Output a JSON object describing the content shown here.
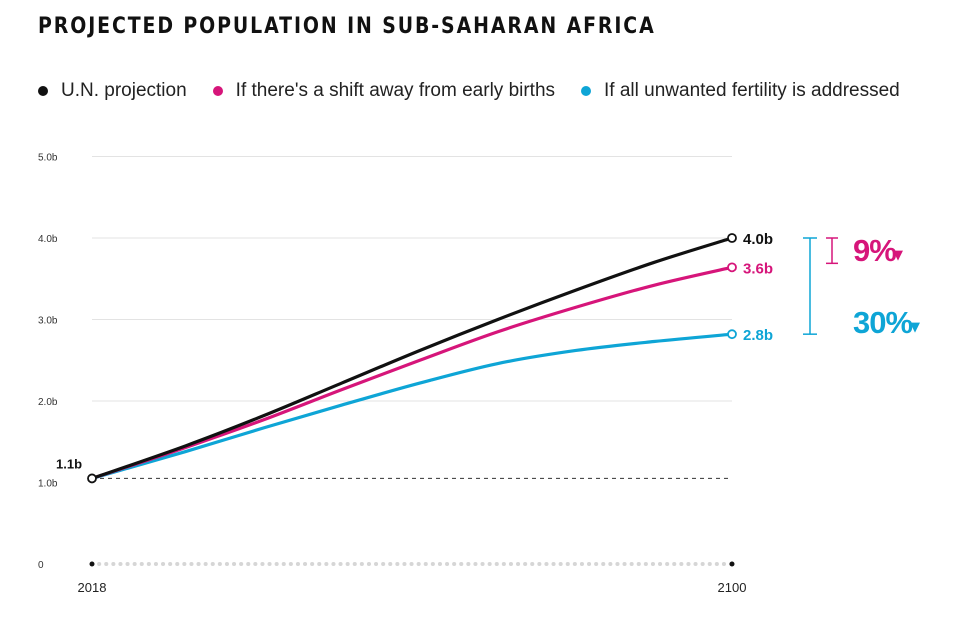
{
  "title": "PROJECTED POPULATION IN SUB-SAHARAN AFRICA",
  "colors": {
    "un": "#111111",
    "early": "#d6157a",
    "unwanted": "#0ea5d6",
    "grid": "#e3e3e3"
  },
  "chart_data": {
    "type": "line",
    "title": "PROJECTED POPULATION IN SUB-SAHARAN AFRICA",
    "xlabel": "",
    "ylabel": "",
    "x": [
      "2018",
      "2100"
    ],
    "ylim": [
      0,
      5
    ],
    "yticks": [
      0,
      1,
      2,
      3,
      4,
      5
    ],
    "ytick_labels": [
      "0",
      "1.0b",
      "2.0b",
      "3.0b",
      "4.0b",
      "5.0b"
    ],
    "xtick_labels": [
      "2018",
      "2100"
    ],
    "baseline": {
      "value": 1.1,
      "label": "1.1b",
      "style": "dashed"
    },
    "series": [
      {
        "key": "un",
        "name": "U.N. projection",
        "color": "#111111",
        "points": [
          [
            2018,
            1.05
          ],
          [
            2030,
            1.45
          ],
          [
            2040,
            1.82
          ],
          [
            2050,
            2.22
          ],
          [
            2060,
            2.62
          ],
          [
            2070,
            3.0
          ],
          [
            2080,
            3.36
          ],
          [
            2090,
            3.7
          ],
          [
            2100,
            4.0
          ]
        ],
        "end_label": "4.0b"
      },
      {
        "key": "early",
        "name": "If there's a shift away from early births",
        "color": "#d6157a",
        "points": [
          [
            2018,
            1.05
          ],
          [
            2030,
            1.43
          ],
          [
            2040,
            1.77
          ],
          [
            2050,
            2.14
          ],
          [
            2060,
            2.5
          ],
          [
            2070,
            2.85
          ],
          [
            2080,
            3.15
          ],
          [
            2090,
            3.42
          ],
          [
            2100,
            3.64
          ]
        ],
        "end_label": "3.6b"
      },
      {
        "key": "unwanted",
        "name": "If all unwanted fertility is addressed",
        "color": "#0ea5d6",
        "points": [
          [
            2018,
            1.05
          ],
          [
            2030,
            1.38
          ],
          [
            2040,
            1.67
          ],
          [
            2050,
            1.95
          ],
          [
            2060,
            2.22
          ],
          [
            2070,
            2.46
          ],
          [
            2080,
            2.62
          ],
          [
            2090,
            2.73
          ],
          [
            2100,
            2.82
          ]
        ],
        "end_label": "2.8b"
      }
    ],
    "grid": true,
    "legend": "top",
    "annotations": [
      {
        "text": "9%",
        "color": "#d6157a",
        "marker": "▼"
      },
      {
        "text": "30%",
        "color": "#0ea5d6",
        "marker": "▼"
      }
    ]
  }
}
